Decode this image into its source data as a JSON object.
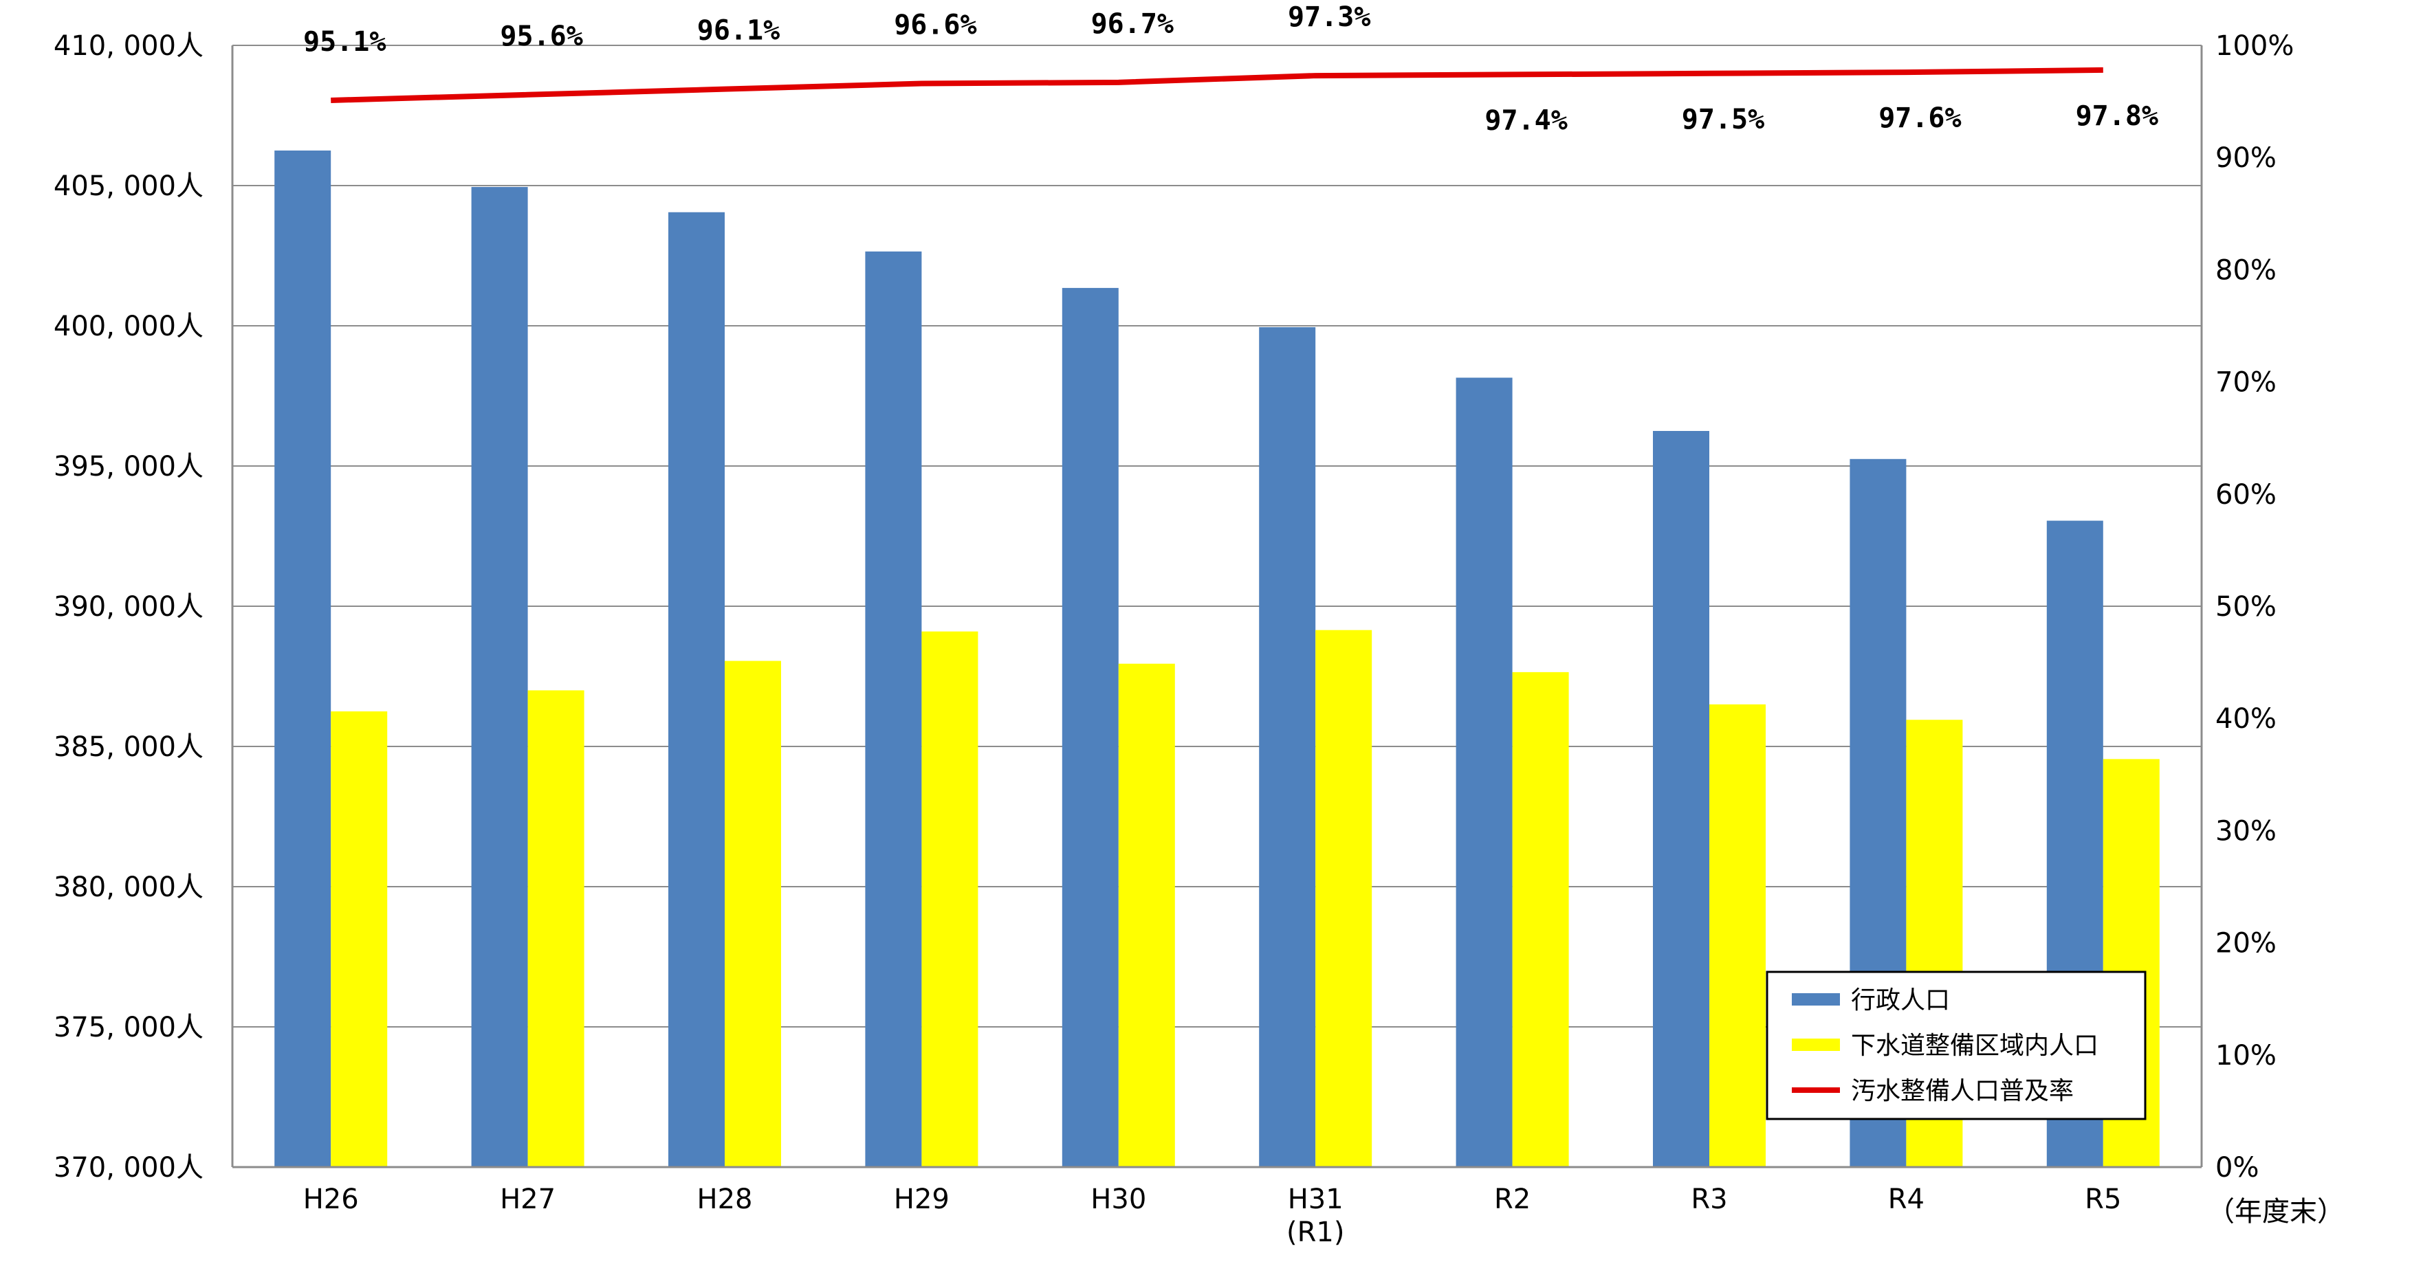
{
  "chart_data": {
    "type": "bar",
    "categories": [
      "H26",
      "H27",
      "H28",
      "H29",
      "H30",
      "H31",
      "R2",
      "R3",
      "R4",
      "R5"
    ],
    "category_sublabels": [
      "",
      "",
      "",
      "",
      "",
      "(R1)",
      "",
      "",
      "",
      ""
    ],
    "x_unit_label": "（年度末）",
    "series": [
      {
        "name": "行政人口",
        "type": "bar",
        "axis": "left",
        "color": "#4f81bd",
        "values": [
          406250,
          404950,
          404050,
          402650,
          401350,
          399950,
          398150,
          396250,
          395250,
          393050
        ]
      },
      {
        "name": "下水道整備区域内人口",
        "type": "bar",
        "axis": "left",
        "color": "#ffff00",
        "values": [
          386250,
          387000,
          388050,
          389100,
          387950,
          389150,
          387650,
          386500,
          385950,
          384550
        ]
      },
      {
        "name": "汚水整備人口普及率",
        "type": "line",
        "axis": "right",
        "color": "#e00000",
        "values": [
          95.1,
          95.6,
          96.1,
          96.6,
          96.7,
          97.3,
          97.4,
          97.5,
          97.6,
          97.8
        ],
        "labels": [
          "95.1%",
          "95.6%",
          "96.1%",
          "96.6%",
          "96.7%",
          "97.3%",
          "97.4%",
          "97.5%",
          "97.6%",
          "97.8%"
        ]
      }
    ],
    "left_axis": {
      "ylim": [
        370000,
        410000
      ],
      "ticks": [
        370000,
        375000,
        380000,
        385000,
        390000,
        395000,
        400000,
        405000,
        410000
      ],
      "tick_labels": [
        "370, 000人",
        "375, 000人",
        "380, 000人",
        "385, 000人",
        "390, 000人",
        "395, 000人",
        "400, 000人",
        "405, 000人",
        "410, 000人"
      ]
    },
    "right_axis": {
      "ylim": [
        0,
        100
      ],
      "ticks": [
        0,
        10,
        20,
        30,
        40,
        50,
        60,
        70,
        80,
        90,
        100
      ],
      "tick_labels": [
        "0%",
        "10%",
        "20%",
        "30%",
        "40%",
        "50%",
        "60%",
        "70%",
        "80%",
        "90%",
        "100%"
      ]
    },
    "grid": true,
    "legend_position": "bottom-right"
  }
}
